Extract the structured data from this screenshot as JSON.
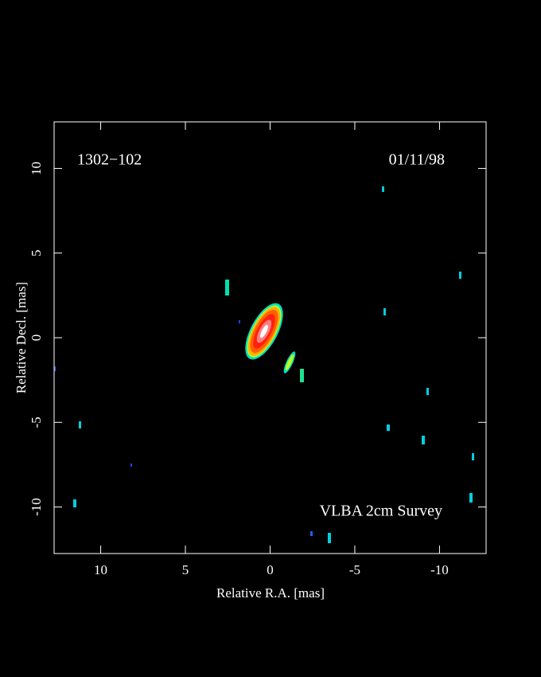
{
  "chart_data": {
    "type": "image",
    "source_label": "1302−102",
    "date_label": "01/11/98",
    "survey_label": "VLBA 2cm Survey",
    "xlabel": "Relative R.A. [mas]",
    "ylabel": "Relative Decl. [mas]",
    "xlim": [
      12.75,
      -12.75
    ],
    "ylim": [
      -12.75,
      12.75
    ],
    "xticks": [
      10,
      5,
      0,
      -5,
      -10
    ],
    "yticks": [
      -10,
      -5,
      0,
      5,
      10
    ]
  }
}
